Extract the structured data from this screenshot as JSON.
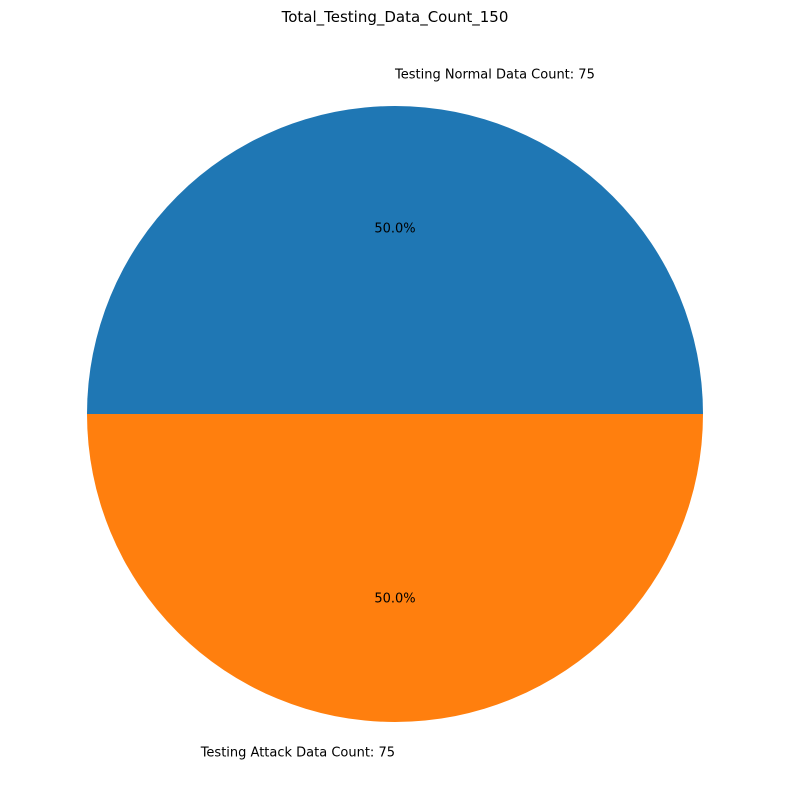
{
  "chart_data": {
    "type": "pie",
    "title": "Total_Testing_Data_Count_150",
    "slices": [
      {
        "label": "Testing Normal Data Count: 75",
        "value": 75,
        "percent_label": "50.0%",
        "color": "#1f77b4"
      },
      {
        "label": "Testing Attack Data Count: 75",
        "value": 75,
        "percent_label": "50.0%",
        "color": "#ff7f0e"
      }
    ],
    "start_angle": "0",
    "direction": "counterclockwise"
  }
}
